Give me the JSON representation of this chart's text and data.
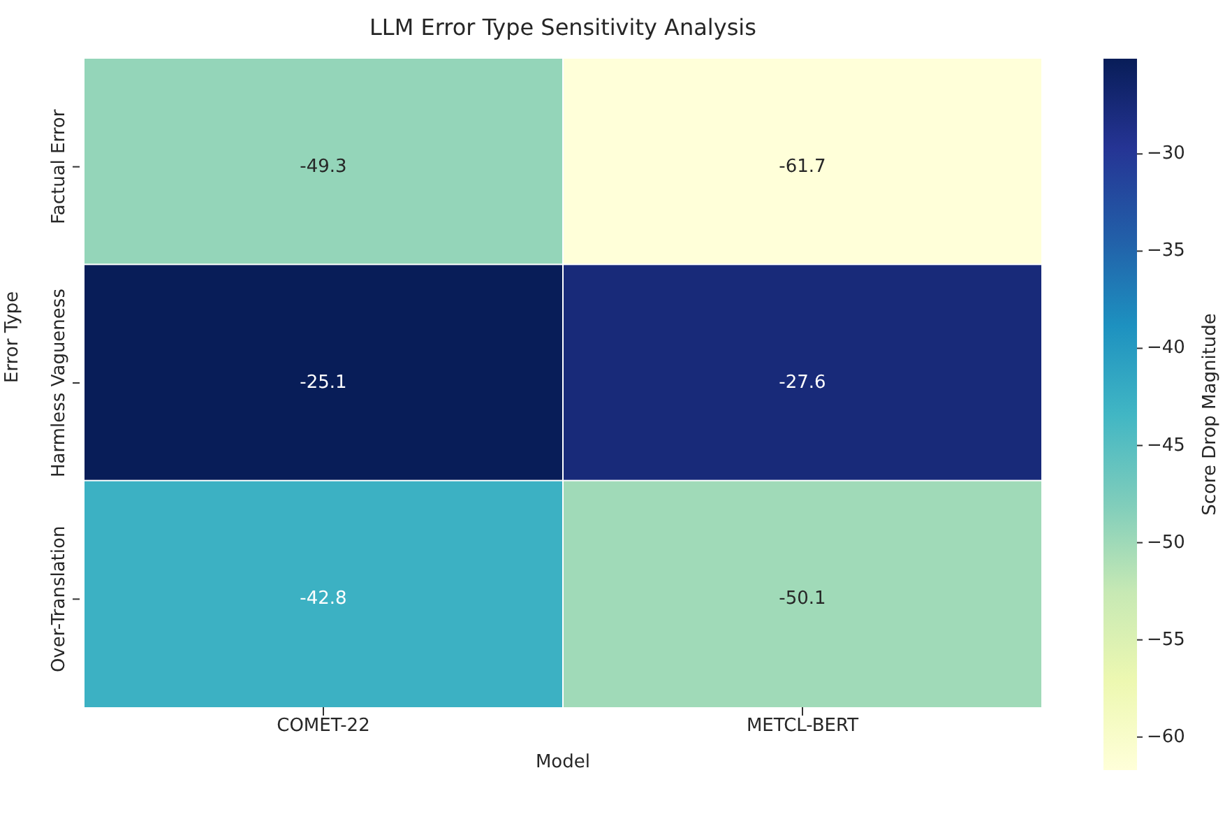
{
  "chart_data": {
    "type": "heatmap",
    "title": "LLM Error Type Sensitivity Analysis",
    "xlabel": "Model",
    "ylabel": "Error Type",
    "clabel": "Score Drop Magnitude",
    "categories": [
      "COMET-22",
      "METCL-BERT"
    ],
    "y_categories": [
      "Factual Error",
      "Harmless Vagueness",
      "Over-Translation"
    ],
    "cells": [
      [
        -49.3,
        -61.7
      ],
      [
        -25.1,
        -27.6
      ],
      [
        -42.8,
        -50.1
      ]
    ],
    "clim": [
      -61.7,
      -25.1
    ],
    "cticks": [
      -60,
      -55,
      -50,
      -45,
      -40,
      -35,
      -30
    ],
    "data_labels": true
  }
}
